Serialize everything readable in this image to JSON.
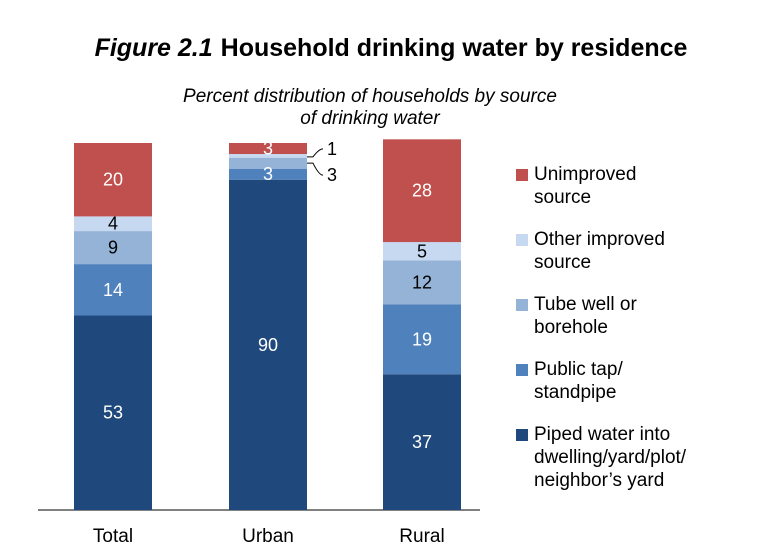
{
  "title": {
    "figure": "Figure 2.1",
    "text": "Household drinking water by residence"
  },
  "subtitle": {
    "line1": "Percent distribution of households by source",
    "line2": "of drinking water"
  },
  "chart_data": {
    "type": "bar",
    "stacked": true,
    "categories": [
      "Total",
      "Urban",
      "Rural"
    ],
    "series": [
      {
        "name": "Piped water into dwelling/yard/plot/ neighbor’s yard",
        "values": [
          53,
          90,
          37
        ],
        "color": "#1f497d"
      },
      {
        "name": "Public tap/ standpipe",
        "values": [
          14,
          3,
          19
        ],
        "color": "#4f81bd"
      },
      {
        "name": "Tube well or borehole",
        "values": [
          9,
          3,
          12
        ],
        "color": "#95b3d7"
      },
      {
        "name": "Other improved source",
        "values": [
          4,
          1,
          5
        ],
        "color": "#c6d9f1"
      },
      {
        "name": "Unimproved source",
        "values": [
          20,
          3,
          28
        ],
        "color": "#c0504d"
      }
    ],
    "data_labels": [
      [
        "53",
        "90",
        "37"
      ],
      [
        "14",
        "3",
        "19"
      ],
      [
        "9",
        "3",
        "12"
      ],
      [
        "4",
        "1",
        "5"
      ],
      [
        "20",
        "3",
        "28"
      ]
    ],
    "ylim": [
      0,
      100
    ],
    "legend_position": "right",
    "grid": false
  },
  "legend": [
    {
      "lines": [
        "Unimproved",
        "source"
      ],
      "color": "#c0504d"
    },
    {
      "lines": [
        "Other improved",
        "source"
      ],
      "color": "#c6d9f1"
    },
    {
      "lines": [
        "Tube well or",
        "borehole"
      ],
      "color": "#95b3d7"
    },
    {
      "lines": [
        "Public tap/",
        "standpipe"
      ],
      "color": "#4f81bd"
    },
    {
      "lines": [
        "Piped water into",
        "dwelling/yard/plot/",
        "neighbor’s yard"
      ],
      "color": "#1f497d"
    }
  ]
}
